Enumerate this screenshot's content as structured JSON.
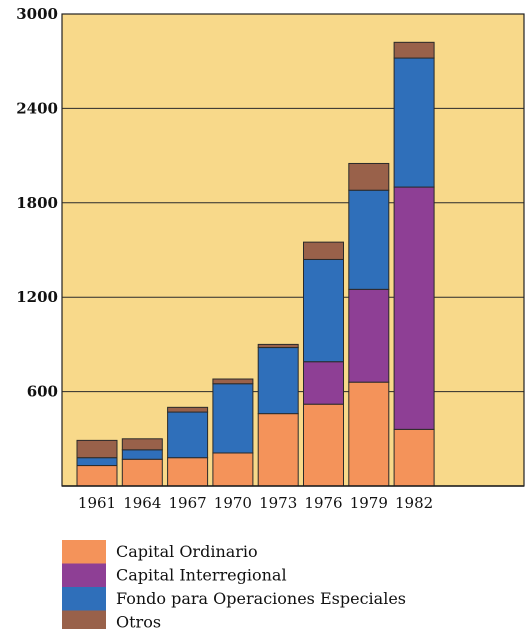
{
  "chart_data": {
    "type": "bar",
    "stacked": true,
    "title": "",
    "xlabel": "",
    "ylabel": "",
    "categories": [
      "1961",
      "1964",
      "1967",
      "1970",
      "1973",
      "1976",
      "1979",
      "1982"
    ],
    "series": [
      {
        "name": "Capital Ordinario",
        "color": "#f4935a",
        "values": [
          130,
          170,
          180,
          210,
          460,
          520,
          660,
          360
        ]
      },
      {
        "name": "Capital Interregional",
        "color": "#8e3f95",
        "values": [
          0,
          0,
          0,
          0,
          0,
          270,
          590,
          1540
        ]
      },
      {
        "name": "Fondo para Operaciones Especiales",
        "color": "#2f6fba",
        "values": [
          50,
          60,
          290,
          440,
          420,
          650,
          630,
          820
        ]
      },
      {
        "name": "Otros",
        "color": "#99614a",
        "values": [
          110,
          70,
          30,
          30,
          20,
          110,
          170,
          100
        ]
      }
    ],
    "ylim": [
      0,
      3000
    ],
    "yticks": [
      600,
      1200,
      1800,
      2400,
      3000
    ],
    "grid": true,
    "legend_position": "bottom-left",
    "plot_background": "#f8d98a"
  }
}
